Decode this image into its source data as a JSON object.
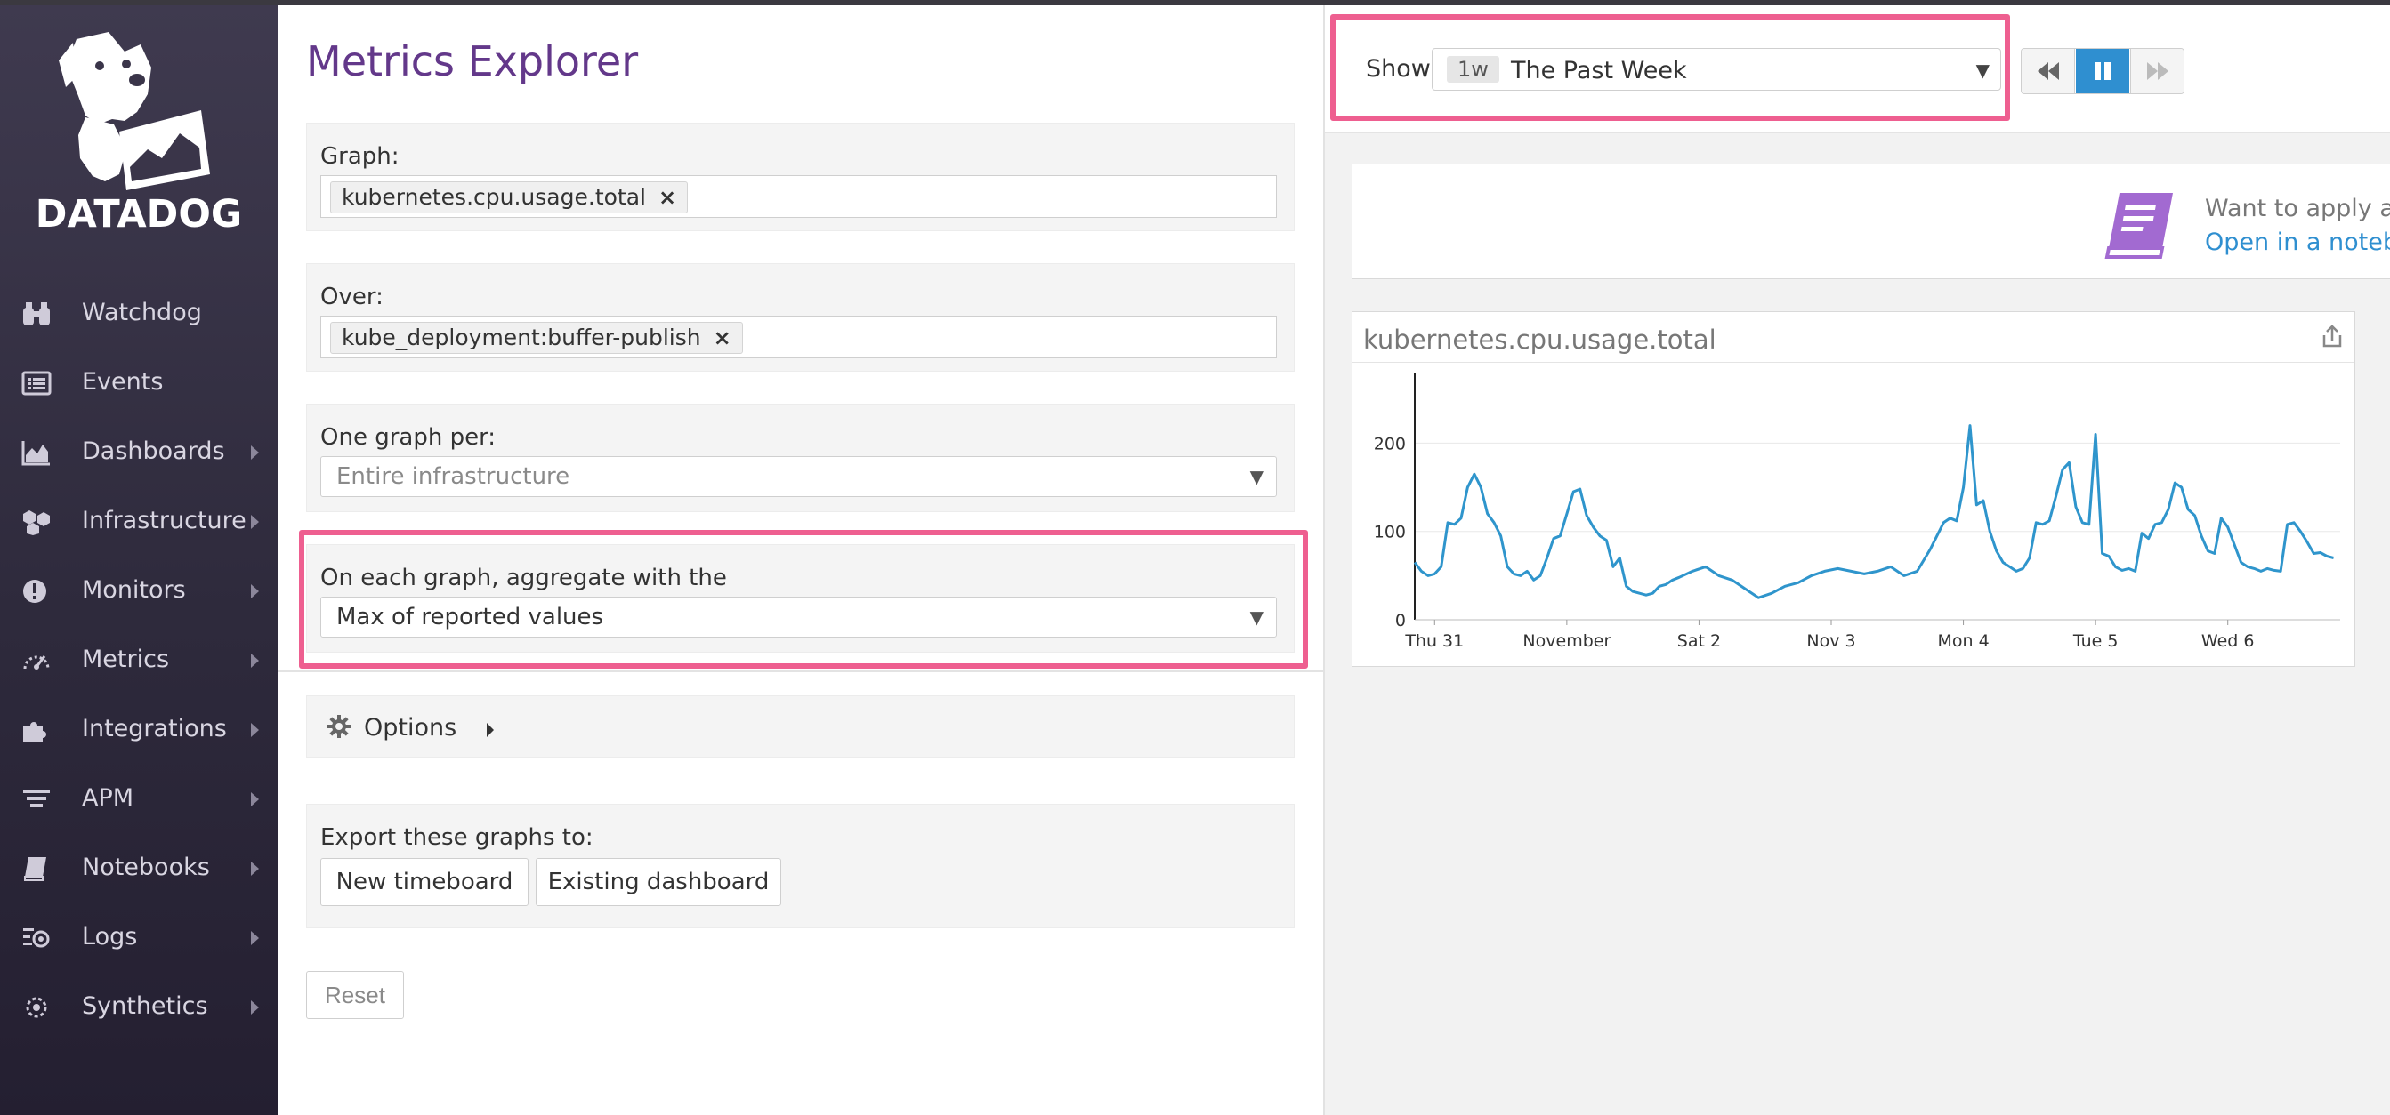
{
  "sidebar": {
    "logo_text": "DATADOG",
    "items": [
      {
        "label": "Watchdog",
        "icon": "binoculars-icon",
        "has_caret": false
      },
      {
        "label": "Events",
        "icon": "events-list-icon",
        "has_caret": false
      },
      {
        "label": "Dashboards",
        "icon": "area-chart-icon",
        "has_caret": true
      },
      {
        "label": "Infrastructure",
        "icon": "hexagons-icon",
        "has_caret": true
      },
      {
        "label": "Monitors",
        "icon": "alert-circle-icon",
        "has_caret": true
      },
      {
        "label": "Metrics",
        "icon": "gauge-icon",
        "has_caret": true
      },
      {
        "label": "Integrations",
        "icon": "puzzle-icon",
        "has_caret": true
      },
      {
        "label": "APM",
        "icon": "apm-lines-icon",
        "has_caret": true
      },
      {
        "label": "Notebooks",
        "icon": "notebook-icon",
        "has_caret": true
      },
      {
        "label": "Logs",
        "icon": "logs-icon",
        "has_caret": true
      },
      {
        "label": "Synthetics",
        "icon": "synthetics-icon",
        "has_caret": true
      }
    ]
  },
  "explorer": {
    "title": "Metrics Explorer",
    "graph": {
      "label": "Graph:",
      "tag": "kubernetes.cpu.usage.total"
    },
    "over": {
      "label": "Over:",
      "tag": "kube_deployment:buffer-publish"
    },
    "per": {
      "label": "One graph per:",
      "placeholder": "Entire infrastructure"
    },
    "aggregate": {
      "label": "On each graph, aggregate with the",
      "value": "Max of reported values"
    },
    "options_label": "Options",
    "export": {
      "label": "Export these graphs to:",
      "new_timeboard": "New timeboard",
      "existing_dashboard": "Existing dashboard"
    },
    "reset_label": "Reset",
    "remove_glyph": "×"
  },
  "timeframe": {
    "show_label": "Show",
    "badge": "1w",
    "value": "The Past Week"
  },
  "notebook_banner": {
    "text": "Want to apply advar",
    "link": "Open in a notebook"
  },
  "colors": {
    "accent_purple": "#63388a",
    "highlight_pink": "#ee5f90",
    "series_blue": "#2f95cc",
    "link_blue": "#2f8fd0"
  },
  "chart_data": {
    "type": "line",
    "title": "kubernetes.cpu.usage.total",
    "x_tick_labels": [
      "Thu 31",
      "November",
      "Sat 2",
      "Nov 3",
      "Mon 4",
      "Tue 5",
      "Wed 6"
    ],
    "y_tick_labels": [
      "0",
      "100",
      "200"
    ],
    "xlim": [
      0,
      7
    ],
    "ylim": [
      0,
      280
    ],
    "grid": true,
    "series": [
      {
        "x": [
          0,
          0.05,
          0.1,
          0.15,
          0.2,
          0.25,
          0.3,
          0.35,
          0.4,
          0.45,
          0.5,
          0.55,
          0.6,
          0.65,
          0.7,
          0.75,
          0.8,
          0.85,
          0.9,
          0.95,
          1.0,
          1.05,
          1.1,
          1.15,
          1.2,
          1.25,
          1.3,
          1.35,
          1.4,
          1.45,
          1.5,
          1.55,
          1.6,
          1.65,
          1.7,
          1.75,
          1.8,
          1.85,
          1.9,
          1.95,
          2.0,
          2.1,
          2.2,
          2.3,
          2.4,
          2.5,
          2.6,
          2.7,
          2.8,
          2.9,
          3.0,
          3.1,
          3.2,
          3.3,
          3.4,
          3.5,
          3.6,
          3.7,
          3.8,
          3.9,
          4.0,
          4.05,
          4.1,
          4.15,
          4.2,
          4.25,
          4.3,
          4.35,
          4.4,
          4.45,
          4.5,
          4.55,
          4.6,
          4.65,
          4.7,
          4.75,
          4.8,
          4.85,
          4.9,
          4.95,
          5.0,
          5.05,
          5.1,
          5.15,
          5.2,
          5.25,
          5.3,
          5.35,
          5.4,
          5.45,
          5.5,
          5.55,
          5.6,
          5.65,
          5.7,
          5.75,
          5.8,
          5.85,
          5.9,
          5.95,
          6.0,
          6.05,
          6.1,
          6.15,
          6.2,
          6.25,
          6.3,
          6.35,
          6.4,
          6.45,
          6.5,
          6.55,
          6.6,
          6.65,
          6.7,
          6.75,
          6.8,
          6.85,
          6.9,
          6.95
        ],
        "y": [
          65,
          55,
          50,
          52,
          60,
          110,
          108,
          115,
          150,
          165,
          150,
          120,
          110,
          95,
          60,
          52,
          50,
          55,
          45,
          50,
          70,
          92,
          95,
          120,
          145,
          148,
          118,
          105,
          95,
          90,
          60,
          70,
          38,
          32,
          30,
          28,
          30,
          38,
          40,
          45,
          48,
          55,
          60,
          50,
          45,
          35,
          25,
          30,
          38,
          42,
          50,
          55,
          58,
          55,
          52,
          55,
          60,
          50,
          55,
          80,
          110,
          115,
          112,
          150,
          220,
          130,
          135,
          100,
          78,
          65,
          60,
          55,
          58,
          70,
          110,
          108,
          112,
          140,
          170,
          178,
          128,
          110,
          108,
          210,
          75,
          72,
          60,
          56,
          58,
          55,
          98,
          92,
          108,
          110,
          125,
          155,
          150,
          125,
          118,
          95,
          78,
          75,
          115,
          105,
          85,
          65,
          60,
          58,
          55,
          58,
          56,
          55,
          108,
          110,
          100,
          88,
          75,
          76,
          72,
          70
        ],
        "color": "#2f95cc"
      }
    ]
  }
}
